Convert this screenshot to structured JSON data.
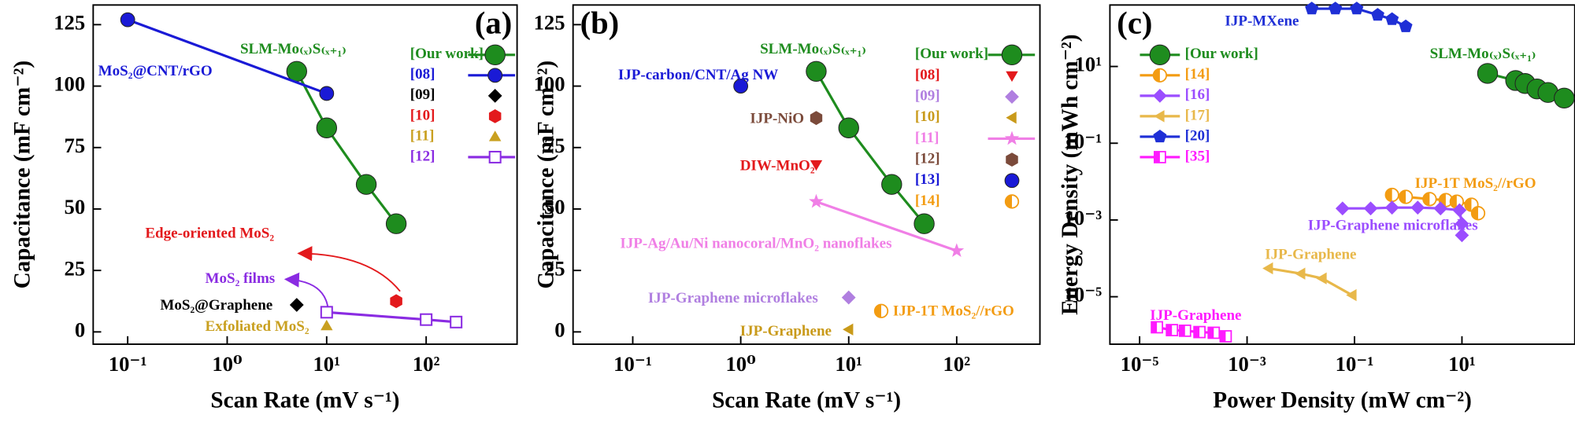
{
  "chart_data": [
    {
      "type": "scatter",
      "label": "(a)",
      "xlabel": "Scan Rate (mV s⁻¹)",
      "ylabel": "Capacitance (mF cm⁻²)",
      "xlog": true,
      "ylog": false,
      "xlim": [
        0.045,
        820
      ],
      "xticks": [
        {
          "value": 0.1,
          "label": "10⁻¹"
        },
        {
          "value": 1,
          "label": "10⁰"
        },
        {
          "value": 10,
          "label": "10¹"
        },
        {
          "value": 100,
          "label": "10²"
        }
      ],
      "ylim": [
        -5,
        133
      ],
      "yticks": [
        0,
        25,
        50,
        75,
        100,
        125
      ],
      "series": [
        {
          "name": "[Our work]",
          "color": "#1e8c1e",
          "marker": "circle",
          "line": true,
          "x": [
            5,
            10,
            25,
            50
          ],
          "values": [
            106,
            83,
            60,
            44
          ]
        },
        {
          "name": "[08]",
          "color": "#1a1ad6",
          "marker": "circle",
          "line": true,
          "x": [
            0.1,
            10
          ],
          "values": [
            127,
            97
          ]
        },
        {
          "name": "[09]",
          "color": "#000000",
          "marker": "diamond",
          "line": false,
          "x": [
            5
          ],
          "values": [
            11
          ]
        },
        {
          "name": "[10]",
          "color": "#e3191c",
          "marker": "hexagon",
          "line": false,
          "x": [
            50
          ],
          "values": [
            12.5
          ]
        },
        {
          "name": "[11]",
          "color": "#c9a020",
          "marker": "triangle",
          "line": false,
          "x": [
            10
          ],
          "values": [
            2.5
          ]
        },
        {
          "name": "[12]",
          "color": "#8a2be2",
          "marker": "square-open",
          "line": true,
          "x": [
            10,
            100,
            200
          ],
          "values": [
            8,
            5,
            4
          ]
        }
      ],
      "annotations": [
        {
          "text": "MoS₂@CNT/rGO",
          "color": "#1a1ad6"
        },
        {
          "text": "SLM-Mo₍ₓ₎S₍ₓ₊₁₎",
          "color": "#1e8c1e"
        },
        {
          "text": "Edge-oriented MoS₂",
          "color": "#e3191c"
        },
        {
          "text": "MoS₂ films",
          "color": "#8a2be2"
        },
        {
          "text": "MoS₂@Graphene",
          "color": "#000000"
        },
        {
          "text": "Exfoliated MoS₂",
          "color": "#c9a020"
        }
      ]
    },
    {
      "type": "scatter",
      "label": "(b)",
      "xlabel": "Scan Rate (mV s⁻¹)",
      "ylabel": "Capacitance (mF cm⁻²)",
      "xlog": true,
      "ylog": false,
      "xlim": [
        0.028,
        590
      ],
      "xticks": [
        {
          "value": 0.1,
          "label": "10⁻¹"
        },
        {
          "value": 1,
          "label": "10⁰"
        },
        {
          "value": 10,
          "label": "10¹"
        },
        {
          "value": 100,
          "label": "10²"
        }
      ],
      "ylim": [
        -5,
        133
      ],
      "yticks": [
        0,
        25,
        50,
        75,
        100,
        125
      ],
      "series": [
        {
          "name": "[Our work]",
          "color": "#1e8c1e",
          "marker": "circle",
          "line": true,
          "x": [
            5,
            10,
            25,
            50
          ],
          "values": [
            106,
            83,
            60,
            44
          ]
        },
        {
          "name": "[08]",
          "color": "#e3191c",
          "marker": "triangle-down",
          "line": false,
          "x": [
            5
          ],
          "values": [
            68
          ]
        },
        {
          "name": "[09]",
          "color": "#b07fe0",
          "marker": "diamond",
          "line": false,
          "x": [
            10
          ],
          "values": [
            14
          ]
        },
        {
          "name": "[10]",
          "color": "#c99a1a",
          "marker": "left-triangle",
          "line": false,
          "x": [
            10
          ],
          "values": [
            1
          ]
        },
        {
          "name": "[11]",
          "color": "#f07fe6",
          "marker": "star",
          "line": true,
          "x": [
            5,
            100
          ],
          "values": [
            53,
            33
          ]
        },
        {
          "name": "[12]",
          "color": "#7b4a3a",
          "marker": "hexagon",
          "line": false,
          "x": [
            5
          ],
          "values": [
            87
          ]
        },
        {
          "name": "[13]",
          "color": "#1a1ad6",
          "marker": "circle",
          "line": false,
          "x": [
            1
          ],
          "values": [
            100
          ]
        },
        {
          "name": "[14]",
          "color": "#f39c12",
          "marker": "half-circle",
          "line": false,
          "x": [
            20
          ],
          "values": [
            8.5
          ]
        }
      ],
      "annotations": [
        {
          "text": "SLM-Mo₍ₓ₎S₍ₓ₊₁₎",
          "color": "#1e8c1e"
        },
        {
          "text": "IJP-carbon/CNT/Ag NW",
          "color": "#1a1ad6"
        },
        {
          "text": "IJP-NiO",
          "color": "#7b4a3a"
        },
        {
          "text": "DIW-MnO₂",
          "color": "#e3191c"
        },
        {
          "text": "IJP-Ag/Au/Ni nanocoral/MnO₂ nanoflakes",
          "color": "#f07fe6"
        },
        {
          "text": "IJP-Graphene microflakes",
          "color": "#b07fe0"
        },
        {
          "text": "IJP-1T MoS₂//rGO",
          "color": "#f39c12"
        },
        {
          "text": "IJP-Graphene",
          "color": "#c99a1a"
        }
      ]
    },
    {
      "type": "scatter",
      "label": "(c)",
      "xlabel": "Power Density (mW cm⁻²)",
      "ylabel": "Energy Density (mWh cm⁻²)",
      "xlog": true,
      "ylog": true,
      "xlim": [
        2.8e-06,
        1260
      ],
      "xticks": [
        {
          "value": 1e-05,
          "label": "10⁻⁵"
        },
        {
          "value": 0.001,
          "label": "10⁻³"
        },
        {
          "value": 0.1,
          "label": "10⁻¹"
        },
        {
          "value": 10,
          "label": "10¹"
        }
      ],
      "ylim": [
        5.8e-07,
        400
      ],
      "yticks": [
        {
          "value": 1e-05,
          "label": "10⁻⁵"
        },
        {
          "value": 0.001,
          "label": "10⁻³"
        },
        {
          "value": 0.1,
          "label": "10⁻¹"
        },
        {
          "value": 10,
          "label": "10¹"
        }
      ],
      "series": [
        {
          "name": "[Our work]",
          "color": "#1e8c1e",
          "marker": "circle",
          "line": true,
          "x": [
            30,
            100,
            150,
            250,
            400,
            800
          ],
          "values": [
            6.6,
            4.3,
            3.6,
            2.6,
            2.1,
            1.5
          ]
        },
        {
          "name": "[14]",
          "color": "#f39c12",
          "marker": "half-circle",
          "line": true,
          "x": [
            0.5,
            0.9,
            2.5,
            5,
            8,
            15,
            20
          ],
          "values": [
            0.0045,
            0.004,
            0.0035,
            0.0033,
            0.003,
            0.0025,
            0.0015
          ]
        },
        {
          "name": "[16]",
          "color": "#9b4dff",
          "marker": "diamond",
          "line": true,
          "x": [
            0.06,
            0.2,
            0.5,
            1.5,
            4,
            9,
            10,
            10
          ],
          "values": [
            0.002,
            0.002,
            0.0021,
            0.0021,
            0.002,
            0.0018,
            0.0008,
            0.0004
          ]
        },
        {
          "name": "[17]",
          "color": "#e8b84a",
          "marker": "left-triangle",
          "line": true,
          "x": [
            0.0025,
            0.01,
            0.025,
            0.09
          ],
          "values": [
            5.5e-05,
            4e-05,
            3e-05,
            1.1e-05
          ]
        },
        {
          "name": "[20]",
          "color": "#1f2fd6",
          "marker": "pentagon",
          "line": true,
          "x": [
            0.016,
            0.044,
            0.11,
            0.27,
            0.5,
            0.9
          ],
          "values": [
            320,
            320,
            320,
            220,
            170,
            110
          ]
        },
        {
          "name": "[35]",
          "color": "#ff1aff",
          "marker": "half-square",
          "line": true,
          "x": [
            2.1e-05,
            4e-05,
            7e-05,
            0.00013,
            0.00024,
            0.0004
          ],
          "values": [
            1.6e-06,
            1.35e-06,
            1.3e-06,
            1.2e-06,
            1.15e-06,
            9.3e-07
          ]
        }
      ],
      "annotations": [
        {
          "text": "IJP-MXene",
          "color": "#1f2fd6"
        },
        {
          "text": "SLM-Mo₍ₓ₎S₍ₓ₊₁₎",
          "color": "#1e8c1e"
        },
        {
          "text": "IJP-1T MoS₂//rGO",
          "color": "#f39c12"
        },
        {
          "text": "IJP-Graphene microflakes",
          "color": "#9b4dff"
        },
        {
          "text": "IJP-Graphene",
          "color": "#e8b84a"
        },
        {
          "text": "IJP-Graphene",
          "color": "#ff1aff"
        }
      ]
    }
  ]
}
